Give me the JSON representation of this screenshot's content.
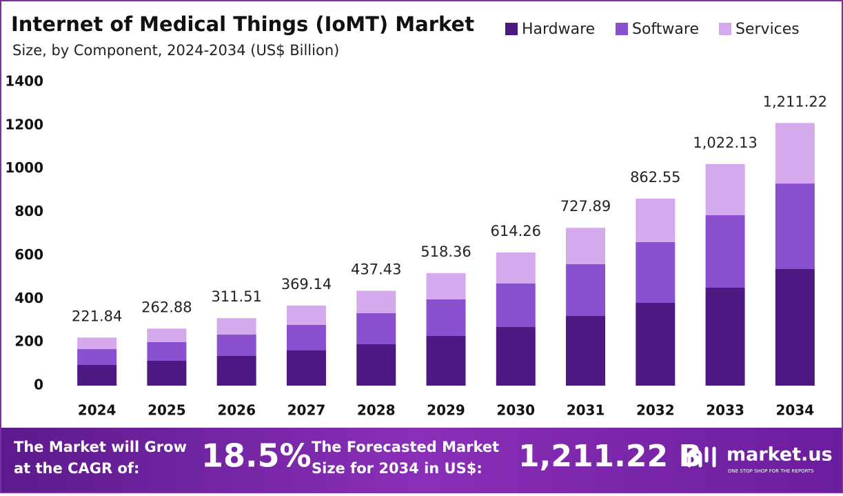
{
  "chart_data": {
    "type": "stacked_bar",
    "title": "Internet of Medical Things (IoMT) Market",
    "subtitle": "Size, by Component, 2024-2034 (US$ Billion)",
    "categories": [
      "2024",
      "2025",
      "2026",
      "2027",
      "2028",
      "2029",
      "2030",
      "2031",
      "2032",
      "2033",
      "2034"
    ],
    "series": [
      {
        "name": "Hardware",
        "color": "#4c1882",
        "values": [
          95.5,
          114.5,
          136.8,
          162.3,
          190.9,
          229.0,
          270.4,
          321.3,
          381.8,
          451.8,
          537.7
        ]
      },
      {
        "name": "Software",
        "color": "#8b50d0",
        "values": [
          73.0,
          86.0,
          98.6,
          117.7,
          143.1,
          168.7,
          200.5,
          238.7,
          280.0,
          334.1,
          394.5
        ]
      },
      {
        "name": "Services",
        "color": "#d5aaed",
        "values": [
          53.3,
          62.5,
          76.1,
          89.1,
          103.4,
          120.7,
          143.4,
          167.9,
          200.8,
          236.2,
          279.0
        ]
      }
    ],
    "totals": [
      221.84,
      262.88,
      311.51,
      369.14,
      437.43,
      518.36,
      614.26,
      727.89,
      862.55,
      1022.13,
      1211.22
    ],
    "total_labels": [
      "221.84",
      "262.88",
      "311.51",
      "369.14",
      "437.43",
      "518.36",
      "614.26",
      "727.89",
      "862.55",
      "1,022.13",
      "1,211.22"
    ],
    "ylim": [
      0,
      1400
    ],
    "yticks": [
      0,
      200,
      400,
      600,
      800,
      1000,
      1200,
      1400
    ],
    "grid": false,
    "legend": "top-right"
  },
  "footer": {
    "cagr_text": [
      "The Market will Grow",
      "at the CAGR of:"
    ],
    "cagr": "18.5%",
    "forecast_text": [
      "The Forecasted Market",
      "Size for 2034 in US$:"
    ],
    "forecast": "1,211.22 B",
    "brand": "market.us",
    "tagline": "ONE STOP SHOP FOR THE REPORTS"
  }
}
